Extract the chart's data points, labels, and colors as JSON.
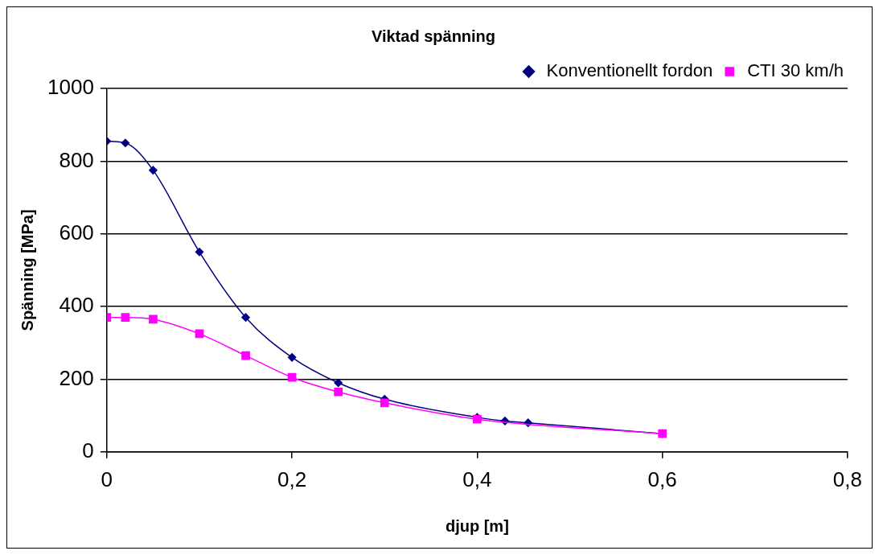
{
  "chart_data": {
    "type": "line",
    "title": "Viktad spänning",
    "xlabel": "djup [m]",
    "ylabel": "Spänning [MPa]",
    "xlim": [
      0,
      0.8
    ],
    "xticks": [
      {
        "value": 0,
        "label": "0"
      },
      {
        "value": 0.2,
        "label": "0,2"
      },
      {
        "value": 0.4,
        "label": "0,4"
      },
      {
        "value": 0.6,
        "label": "0,6"
      },
      {
        "value": 0.8,
        "label": "0,8"
      }
    ],
    "ylim": [
      0,
      1000
    ],
    "yticks": [
      0,
      200,
      400,
      600,
      800,
      1000
    ],
    "grid": "y",
    "legend": "top right",
    "series": [
      {
        "name": "Konventionellt fordon",
        "color": "#000080",
        "marker": "diamond",
        "x": [
          0,
          0.02,
          0.05,
          0.1,
          0.15,
          0.2,
          0.25,
          0.3,
          0.4,
          0.43,
          0.455,
          0.6
        ],
        "values": [
          855,
          850,
          775,
          550,
          370,
          260,
          190,
          145,
          95,
          85,
          80,
          50
        ]
      },
      {
        "name": "CTI 30 km/h",
        "color": "#ff00ff",
        "marker": "square",
        "x": [
          0,
          0.02,
          0.05,
          0.1,
          0.15,
          0.2,
          0.25,
          0.3,
          0.4,
          0.6
        ],
        "values": [
          370,
          370,
          365,
          325,
          265,
          205,
          165,
          135,
          90,
          50
        ]
      }
    ]
  }
}
